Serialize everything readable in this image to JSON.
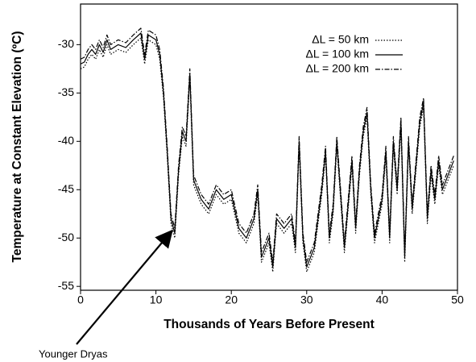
{
  "chart_data": {
    "type": "line",
    "xlabel": "Thousands of Years Before Present",
    "ylabel": "Temperature at Constant Elevation (ºC)",
    "annotation": "Younger Dryas",
    "xlim": [
      0,
      50
    ],
    "xticks": [
      0,
      10,
      20,
      30,
      40,
      50
    ],
    "ylim": [
      -55.4,
      -25.8
    ],
    "yticks": [
      -55,
      -50,
      -45,
      -40,
      -35,
      -30
    ],
    "legend": "upper right",
    "x": [
      0,
      0.5,
      1,
      1.5,
      2,
      2.5,
      3,
      3.5,
      4,
      5,
      6,
      7,
      8,
      8.5,
      9,
      10,
      10.5,
      11,
      11.5,
      12,
      12.5,
      13,
      13.5,
      14,
      14.5,
      15,
      16,
      17,
      18,
      19,
      20,
      21,
      22,
      23,
      23.5,
      24,
      25,
      25.5,
      26,
      27,
      28,
      28.5,
      29,
      29.5,
      30,
      31,
      32,
      32.5,
      33,
      33.5,
      34,
      35,
      36,
      36.5,
      37,
      37.5,
      38,
      38.5,
      39,
      40,
      40.5,
      41,
      41.5,
      42,
      42.5,
      43,
      43.5,
      44,
      45,
      45.5,
      46,
      46.5,
      47,
      47.5,
      48,
      49,
      49.5
    ],
    "series": [
      {
        "name": "ΔL = 50 km",
        "color": "#000000",
        "dash": "1.5,2",
        "values": [
          -32.5,
          -32.3,
          -31.5,
          -31,
          -31.5,
          -30.5,
          -31.3,
          -30,
          -31,
          -30.5,
          -30.8,
          -30,
          -29.3,
          -32,
          -29.5,
          -30,
          -31.5,
          -35.5,
          -41.5,
          -48.5,
          -50,
          -43.5,
          -39.5,
          -40.5,
          -33.5,
          -44.5,
          -46.5,
          -47.5,
          -45.5,
          -46.5,
          -46,
          -49.5,
          -50.5,
          -48.5,
          -45.5,
          -52.5,
          -50.5,
          -53.5,
          -48.5,
          -49.5,
          -48.5,
          -51.5,
          -40.5,
          -50.5,
          -53.5,
          -51.5,
          -45.5,
          -41.5,
          -50.5,
          -47.5,
          -40.5,
          -51.5,
          -42.5,
          -49.5,
          -43.5,
          -39.5,
          -37.5,
          -45.5,
          -50.5,
          -46.5,
          -41.5,
          -50.5,
          -40.5,
          -45.5,
          -38.5,
          -52.5,
          -40.5,
          -47.5,
          -38.5,
          -36.5,
          -48.5,
          -43.5,
          -46.5,
          -42.5,
          -45.5,
          -43.5,
          -42.5
        ]
      },
      {
        "name": "ΔL = 100 km",
        "color": "#000000",
        "dash": "none",
        "values": [
          -32,
          -31.8,
          -31,
          -30.5,
          -31,
          -30,
          -30.8,
          -29.5,
          -30.5,
          -30,
          -30.3,
          -29.5,
          -28.8,
          -31.5,
          -29,
          -29.5,
          -31,
          -35,
          -41,
          -48,
          -49.5,
          -43,
          -39,
          -40,
          -33,
          -44,
          -46,
          -47,
          -45,
          -46,
          -45.5,
          -49,
          -50,
          -48,
          -45,
          -52,
          -50,
          -53,
          -48,
          -49,
          -48,
          -51,
          -40,
          -50,
          -53,
          -51,
          -45,
          -41,
          -50,
          -47,
          -40,
          -51,
          -42,
          -49,
          -43,
          -39,
          -37,
          -45,
          -50,
          -46,
          -41,
          -50,
          -40,
          -45,
          -38,
          -52,
          -40,
          -47,
          -38,
          -36,
          -48,
          -43,
          -46,
          -42,
          -45,
          -43,
          -42
        ]
      },
      {
        "name": "ΔL = 200 km",
        "color": "#000000",
        "dash": "6,2,1.5,2",
        "values": [
          -31.5,
          -31.3,
          -30.5,
          -30,
          -30.5,
          -29.5,
          -30.3,
          -29,
          -30,
          -29.5,
          -29.8,
          -29,
          -28.3,
          -31,
          -28.5,
          -29,
          -30.5,
          -34.5,
          -40.5,
          -47.5,
          -49,
          -42.5,
          -38.5,
          -39.5,
          -32.5,
          -43.5,
          -45.5,
          -46.5,
          -44.5,
          -45.5,
          -45,
          -48.5,
          -49.5,
          -47.5,
          -44.5,
          -51.5,
          -49.5,
          -52.5,
          -47.5,
          -48.5,
          -47.5,
          -50.5,
          -39.5,
          -49.5,
          -52.5,
          -50.5,
          -44.5,
          -40.5,
          -49.5,
          -46.5,
          -39.5,
          -50.5,
          -41.5,
          -48.5,
          -42.5,
          -38.5,
          -36.5,
          -44.5,
          -49.5,
          -45.5,
          -40.5,
          -49.5,
          -39.5,
          -44.5,
          -37.5,
          -51.5,
          -39.5,
          -46.5,
          -37.5,
          -35.5,
          -47.5,
          -42.5,
          -45.5,
          -41.5,
          -44.5,
          -42.5,
          -41.5
        ]
      }
    ]
  }
}
